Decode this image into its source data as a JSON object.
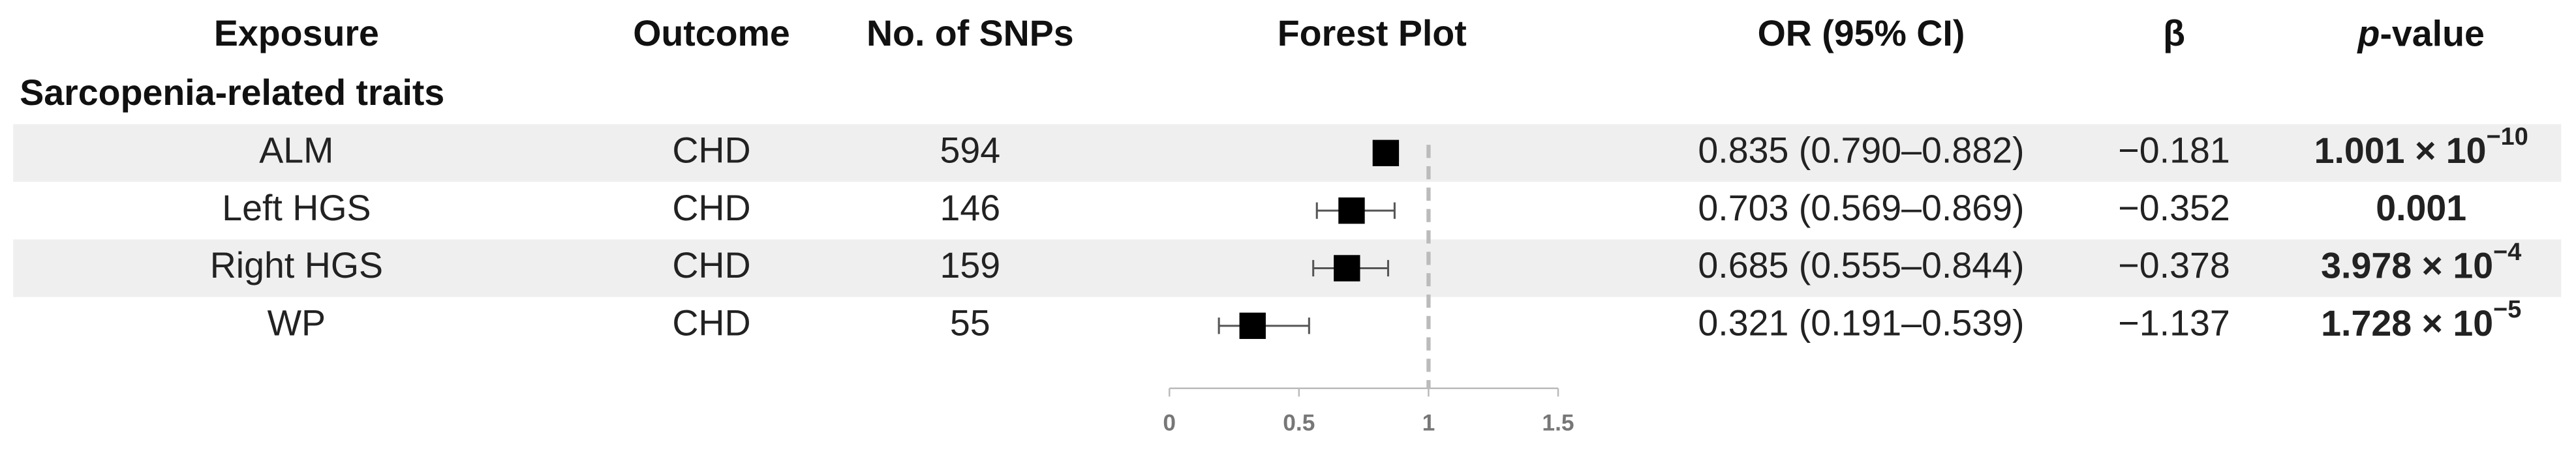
{
  "chart_data": {
    "type": "forest",
    "headers": {
      "exposure": "Exposure",
      "outcome": "Outcome",
      "snps": "No. of SNPs",
      "plot": "Forest Plot",
      "or": "OR (95% CI)",
      "beta": "β",
      "p_value": {
        "italic": "p",
        "rest": "-value"
      }
    },
    "section": "Sarcopenia-related traits",
    "categories": [
      "ALM",
      "Left HGS",
      "Right HGS",
      "WP"
    ],
    "outcomes": [
      "CHD",
      "CHD",
      "CHD",
      "CHD"
    ],
    "snps": [
      594,
      146,
      159,
      55
    ],
    "values": [
      0.835,
      0.703,
      0.685,
      0.321
    ],
    "ci_lower": [
      0.79,
      0.569,
      0.555,
      0.191
    ],
    "ci_upper": [
      0.882,
      0.869,
      0.844,
      0.539
    ],
    "value_labels": [
      "0.835 (0.790–0.882)",
      "0.703 (0.569–0.869)",
      "0.685 (0.555–0.844)",
      "0.321 (0.191–0.539)"
    ],
    "beta": [
      "−0.181",
      "−0.352",
      "−0.378",
      "−1.137"
    ],
    "p_values": [
      {
        "base": "1.001 × 10",
        "exp": "−10"
      },
      {
        "base": "0.001"
      },
      {
        "base": "3.978 × 10",
        "exp": "−4"
      },
      {
        "base": "1.728 × 10",
        "exp": "−5"
      }
    ],
    "xlim": [
      0,
      1.5
    ],
    "xticks": [
      0,
      0.5,
      1,
      1.5
    ],
    "reference_line": 1,
    "color": "#000000",
    "shaded_rows": [
      0,
      2
    ]
  }
}
